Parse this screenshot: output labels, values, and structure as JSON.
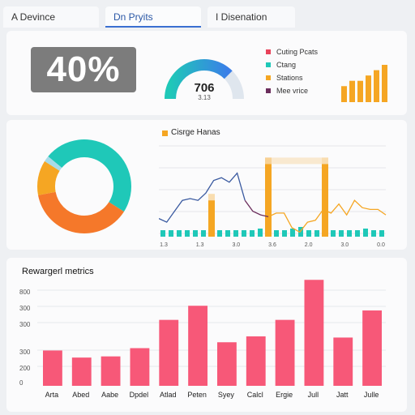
{
  "tabs": [
    {
      "label": "A Devince"
    },
    {
      "label": "Dn Pryits"
    },
    {
      "label": "I Disenation"
    }
  ],
  "kpi": {
    "value": "40%"
  },
  "gauge": {
    "value": "706",
    "sub": "3.13",
    "fraction": 0.75,
    "colors": [
      "#1fc8b8",
      "#3a7ee8"
    ]
  },
  "legend": [
    {
      "label": "Cuting Pcats",
      "color": "#e8435a"
    },
    {
      "label": "Ctang",
      "color": "#1fc8b8"
    },
    {
      "label": "Stations",
      "color": "#f5a623"
    },
    {
      "label": "Mee vrice",
      "color": "#6b2d5c"
    }
  ],
  "chart_data": [
    {
      "type": "bar",
      "values": [
        3,
        4,
        4,
        5,
        6,
        7
      ],
      "color": "#f5a623"
    },
    {
      "type": "pie",
      "values": [
        48,
        38,
        12,
        2
      ],
      "colors": [
        "#1fc8b8",
        "#f5782a",
        "#f5a623",
        "#a7dbe8"
      ]
    },
    {
      "type": "line",
      "title": "Cisrge Hanas",
      "legend_color": "#f5a623",
      "x_ticks": [
        "1.3",
        "1.3",
        "3.0",
        "3.6",
        "2.0",
        "3.0",
        "0.0"
      ],
      "line_values": [
        20,
        16,
        28,
        40,
        42,
        40,
        48,
        62,
        65,
        60,
        70,
        40,
        28,
        24,
        22,
        26,
        26,
        10,
        5,
        16,
        18,
        30,
        26,
        36,
        24,
        40,
        32,
        30,
        30,
        24
      ],
      "line_colors": [
        "#3a5aa0",
        "#6b2d5c",
        "#f5a623"
      ],
      "teal_bars": [
        8,
        8,
        8,
        8,
        8,
        8,
        8,
        8,
        8,
        8,
        8,
        8,
        10,
        8,
        8,
        8,
        10,
        12,
        8,
        8,
        8,
        8,
        8,
        8,
        8,
        10,
        8,
        8
      ],
      "orange_bars": [
        {
          "slot": 6,
          "value": 40
        },
        {
          "slot": 13,
          "value": 80
        },
        {
          "slot": 20,
          "value": 80
        }
      ],
      "bar_colors": {
        "teal": "#1fc8b8",
        "orange": "#f5a623"
      }
    },
    {
      "type": "bar",
      "title": "Rewargerl metrics",
      "y_ticks": [
        "800",
        "300",
        "300",
        "300",
        "200",
        "0"
      ],
      "categories": [
        "Arta",
        "Abed",
        "Aabe",
        "Dpdel",
        "Atlad",
        "Peten",
        "Syey",
        "Calcl",
        "Ergie",
        "Jull",
        "Jatt",
        "Julle"
      ],
      "values": [
        300,
        240,
        250,
        320,
        560,
        680,
        370,
        420,
        560,
        900,
        410,
        640
      ],
      "ylim": [
        0,
        950
      ],
      "color": "#f75878"
    }
  ]
}
